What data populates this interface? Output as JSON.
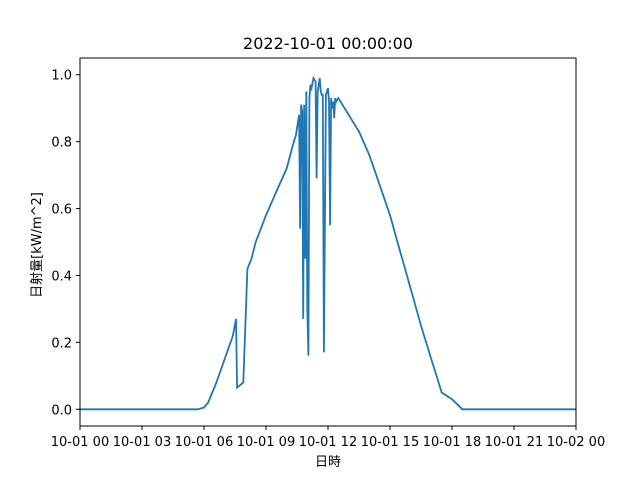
{
  "chart_data": {
    "type": "line",
    "title": "2022-10-01 00:00:00",
    "xlabel": "日時",
    "ylabel": "日射量[kW/m^2]",
    "x_unit": "hour",
    "xlim": [
      0,
      24
    ],
    "ylim": [
      -0.05,
      1.05
    ],
    "x_ticks": [
      {
        "value": 0,
        "label": "10-01 00"
      },
      {
        "value": 3,
        "label": "10-01 03"
      },
      {
        "value": 6,
        "label": "10-01 06"
      },
      {
        "value": 9,
        "label": "10-01 09"
      },
      {
        "value": 12,
        "label": "10-01 12"
      },
      {
        "value": 15,
        "label": "10-01 15"
      },
      {
        "value": 18,
        "label": "10-01 18"
      },
      {
        "value": 21,
        "label": "10-01 21"
      },
      {
        "value": 24,
        "label": "10-02 00"
      }
    ],
    "y_ticks": [
      {
        "value": 0.0,
        "label": "0.0"
      },
      {
        "value": 0.2,
        "label": "0.2"
      },
      {
        "value": 0.4,
        "label": "0.4"
      },
      {
        "value": 0.6,
        "label": "0.6"
      },
      {
        "value": 0.8,
        "label": "0.8"
      },
      {
        "value": 1.0,
        "label": "1.0"
      }
    ],
    "grid": false,
    "legend": "none",
    "series": [
      {
        "color": "#1f77b4",
        "x": [
          0,
          3,
          5.7,
          6.0,
          6.2,
          6.6,
          7.0,
          7.4,
          7.55,
          7.6,
          7.7,
          7.9,
          8.1,
          8.3,
          8.5,
          9.0,
          9.5,
          10.0,
          10.3,
          10.45,
          10.5,
          10.55,
          10.6,
          10.65,
          10.7,
          10.75,
          10.8,
          10.85,
          10.9,
          10.95,
          11.0,
          11.05,
          11.1,
          11.15,
          11.2,
          11.3,
          11.4,
          11.45,
          11.5,
          11.55,
          11.6,
          11.65,
          11.7,
          11.75,
          11.8,
          11.9,
          12.0,
          12.05,
          12.1,
          12.15,
          12.2,
          12.25,
          12.3,
          12.35,
          12.4,
          12.5,
          12.7,
          13.0,
          13.5,
          14.0,
          14.5,
          15.0,
          15.5,
          16.0,
          16.5,
          17.0,
          17.5,
          18.0,
          18.5,
          18.6,
          18.7,
          18.8,
          18.85,
          18.9,
          19.0,
          19.1,
          19.3,
          19.5,
          20.0,
          21.0,
          24.0
        ],
        "values": [
          0,
          0,
          0,
          0.005,
          0.02,
          0.08,
          0.15,
          0.22,
          0.27,
          0.065,
          0.07,
          0.08,
          0.42,
          0.45,
          0.5,
          0.58,
          0.65,
          0.72,
          0.79,
          0.82,
          0.84,
          0.86,
          0.88,
          0.54,
          0.91,
          0.89,
          0.27,
          0.91,
          0.45,
          0.95,
          0.3,
          0.16,
          0.93,
          0.97,
          0.96,
          0.99,
          0.98,
          0.69,
          0.95,
          0.97,
          0.99,
          0.95,
          0.94,
          0.94,
          0.17,
          0.94,
          0.96,
          0.92,
          0.55,
          0.93,
          0.9,
          0.92,
          0.87,
          0.93,
          0.92,
          0.93,
          0.91,
          0.88,
          0.83,
          0.76,
          0.67,
          0.58,
          0.47,
          0.36,
          0.25,
          0.15,
          0.05,
          0.03,
          0.0,
          0.0,
          0.0,
          0.0,
          0.0,
          0.0,
          0.0,
          0.0,
          0.0,
          0.0,
          0.0,
          0.0,
          0.0
        ]
      }
    ]
  }
}
